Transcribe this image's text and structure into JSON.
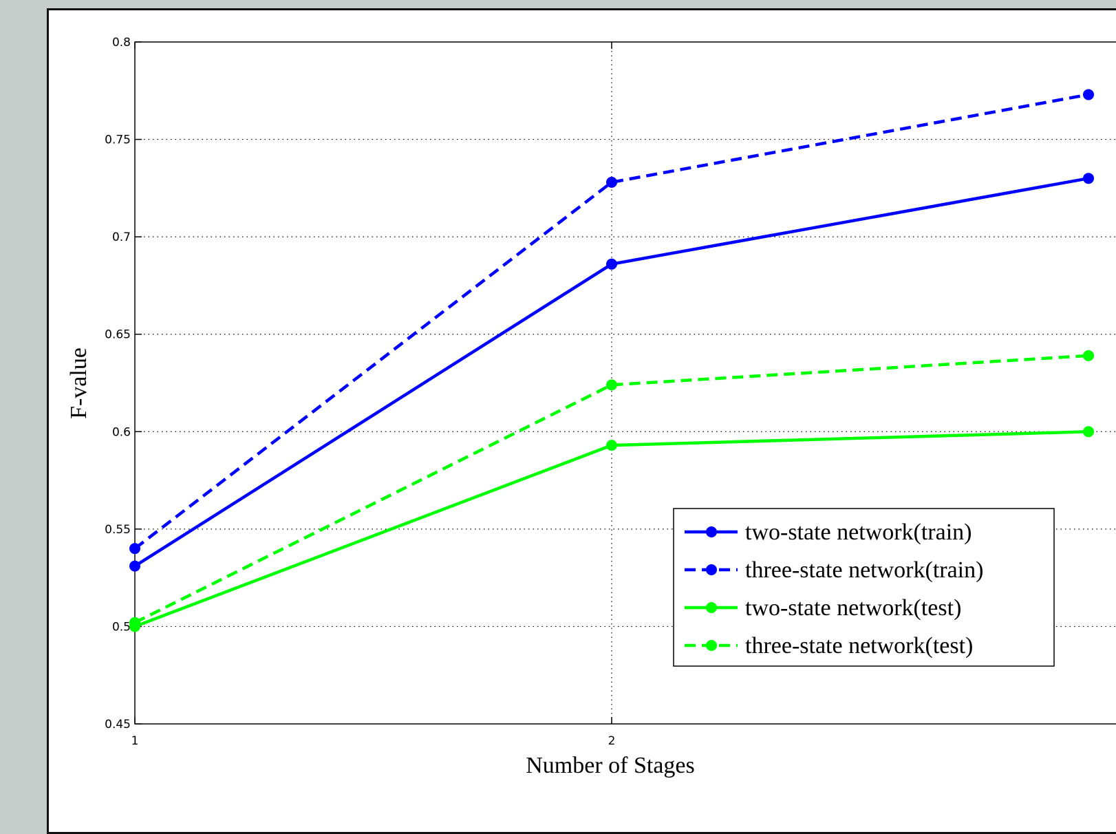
{
  "chart_data": {
    "type": "line",
    "xlabel": "Number of Stages",
    "ylabel": "F-value",
    "x": [
      1,
      2,
      3
    ],
    "xticks": [
      "1",
      "2"
    ],
    "ylim": [
      0.45,
      0.8
    ],
    "yticks": [
      "0.45",
      "0.5",
      "0.55",
      "0.6",
      "0.65",
      "0.7",
      "0.75",
      "0.8"
    ],
    "grid": true,
    "legend_position": "lower-right",
    "series": [
      {
        "name": "two-state network(train)",
        "values": [
          0.531,
          0.686,
          0.73
        ],
        "color": "#0000ff",
        "dash": "solid"
      },
      {
        "name": "three-state network(train)",
        "values": [
          0.54,
          0.728,
          0.773
        ],
        "color": "#0000ff",
        "dash": "dashed"
      },
      {
        "name": "two-state network(test)",
        "values": [
          0.5,
          0.593,
          0.6
        ],
        "color": "#00ff00",
        "dash": "solid"
      },
      {
        "name": "three-state network(test)",
        "values": [
          0.502,
          0.624,
          0.639
        ],
        "color": "#00ff00",
        "dash": "dashed"
      }
    ]
  }
}
